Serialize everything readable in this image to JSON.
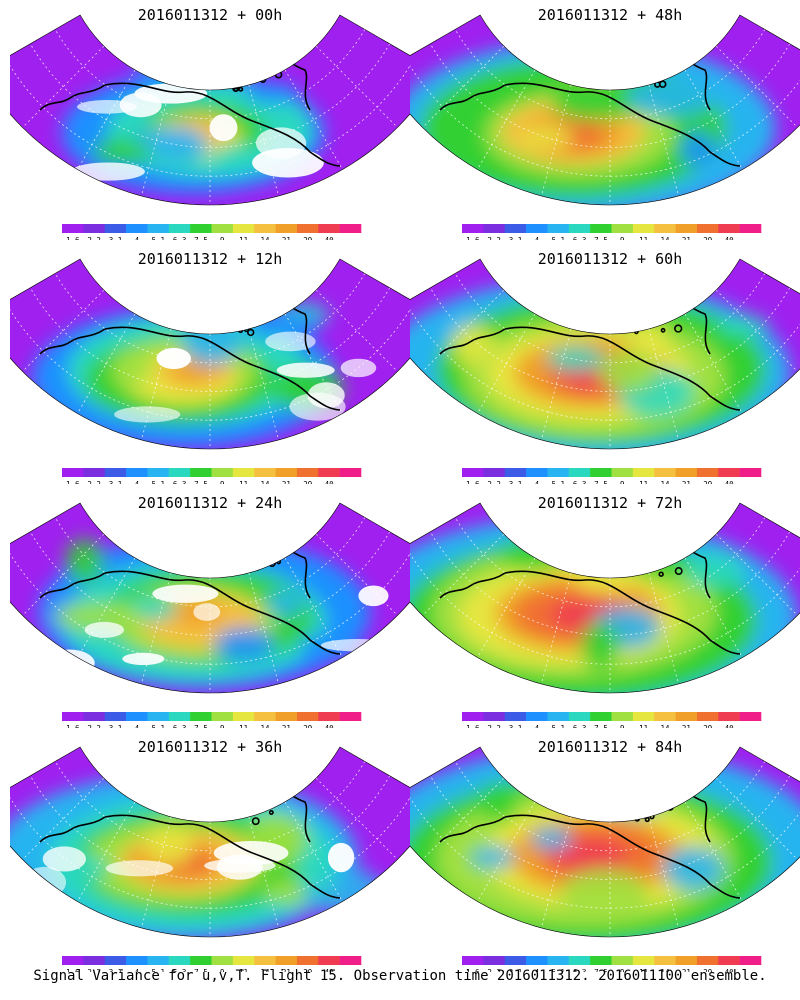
{
  "colorbar": {
    "labels": [
      "1.6",
      "2.2",
      "3.1",
      "4",
      "5.1",
      "6.3",
      "7.5",
      "9",
      "11",
      "14",
      "21",
      "29",
      "40"
    ],
    "colors": [
      "#a020f0",
      "#7b2ee0",
      "#3c5ce8",
      "#1e90ff",
      "#28b4f0",
      "#2ad8c0",
      "#30d030",
      "#a0e040",
      "#e6e640",
      "#f5c040",
      "#f0a028",
      "#f07030",
      "#f03c50",
      "#f01e88"
    ]
  },
  "panels": [
    {
      "id": "p00",
      "title": "2016011312 + 00h",
      "intensity": 0.45
    },
    {
      "id": "p48",
      "title": "2016011312 + 48h",
      "intensity": 0.75
    },
    {
      "id": "p12",
      "title": "2016011312 + 12h",
      "intensity": 0.55
    },
    {
      "id": "p60",
      "title": "2016011312 + 60h",
      "intensity": 0.82
    },
    {
      "id": "p24",
      "title": "2016011312 + 24h",
      "intensity": 0.62
    },
    {
      "id": "p72",
      "title": "2016011312 + 72h",
      "intensity": 0.9
    },
    {
      "id": "p36",
      "title": "2016011312 + 36h",
      "intensity": 0.7
    },
    {
      "id": "p84",
      "title": "2016011312 + 84h",
      "intensity": 0.95
    }
  ],
  "caption": "Signal Variance for u,v,T. Flight 15. Observation time 2016011312. 2016011100 ensemble."
}
